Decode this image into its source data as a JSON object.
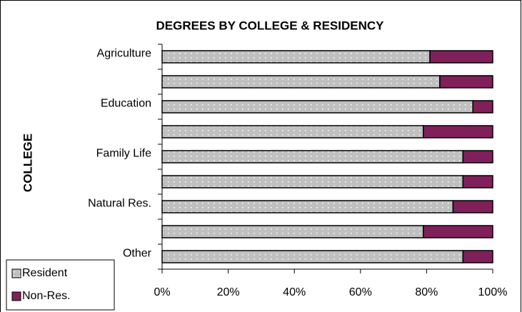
{
  "chart_data": {
    "type": "stacked-bar-horizontal",
    "title": "DEGREES BY COLLEGE & RESIDENCY",
    "y_label": "COLLEGE",
    "categories": [
      "Agriculture",
      null,
      "Education",
      null,
      "Family Life",
      null,
      "Natural Res.",
      null,
      "Other"
    ],
    "series": [
      {
        "name": "Resident",
        "color": "#c0c0c0",
        "values": [
          81,
          84,
          94,
          79,
          91,
          91,
          88,
          79,
          91
        ]
      },
      {
        "name": "Non-Res.",
        "color": "#80205a",
        "values": [
          19,
          16,
          6,
          21,
          9,
          9,
          12,
          21,
          9
        ]
      }
    ],
    "xlim": [
      0,
      100
    ],
    "xticks": [
      {
        "value": 0,
        "label": "0%"
      },
      {
        "value": 20,
        "label": "20%"
      },
      {
        "value": 40,
        "label": "40%"
      },
      {
        "value": 60,
        "label": "60%"
      },
      {
        "value": 80,
        "label": "80%"
      },
      {
        "value": 100,
        "label": "100%"
      }
    ],
    "legend": "bottom-left"
  }
}
